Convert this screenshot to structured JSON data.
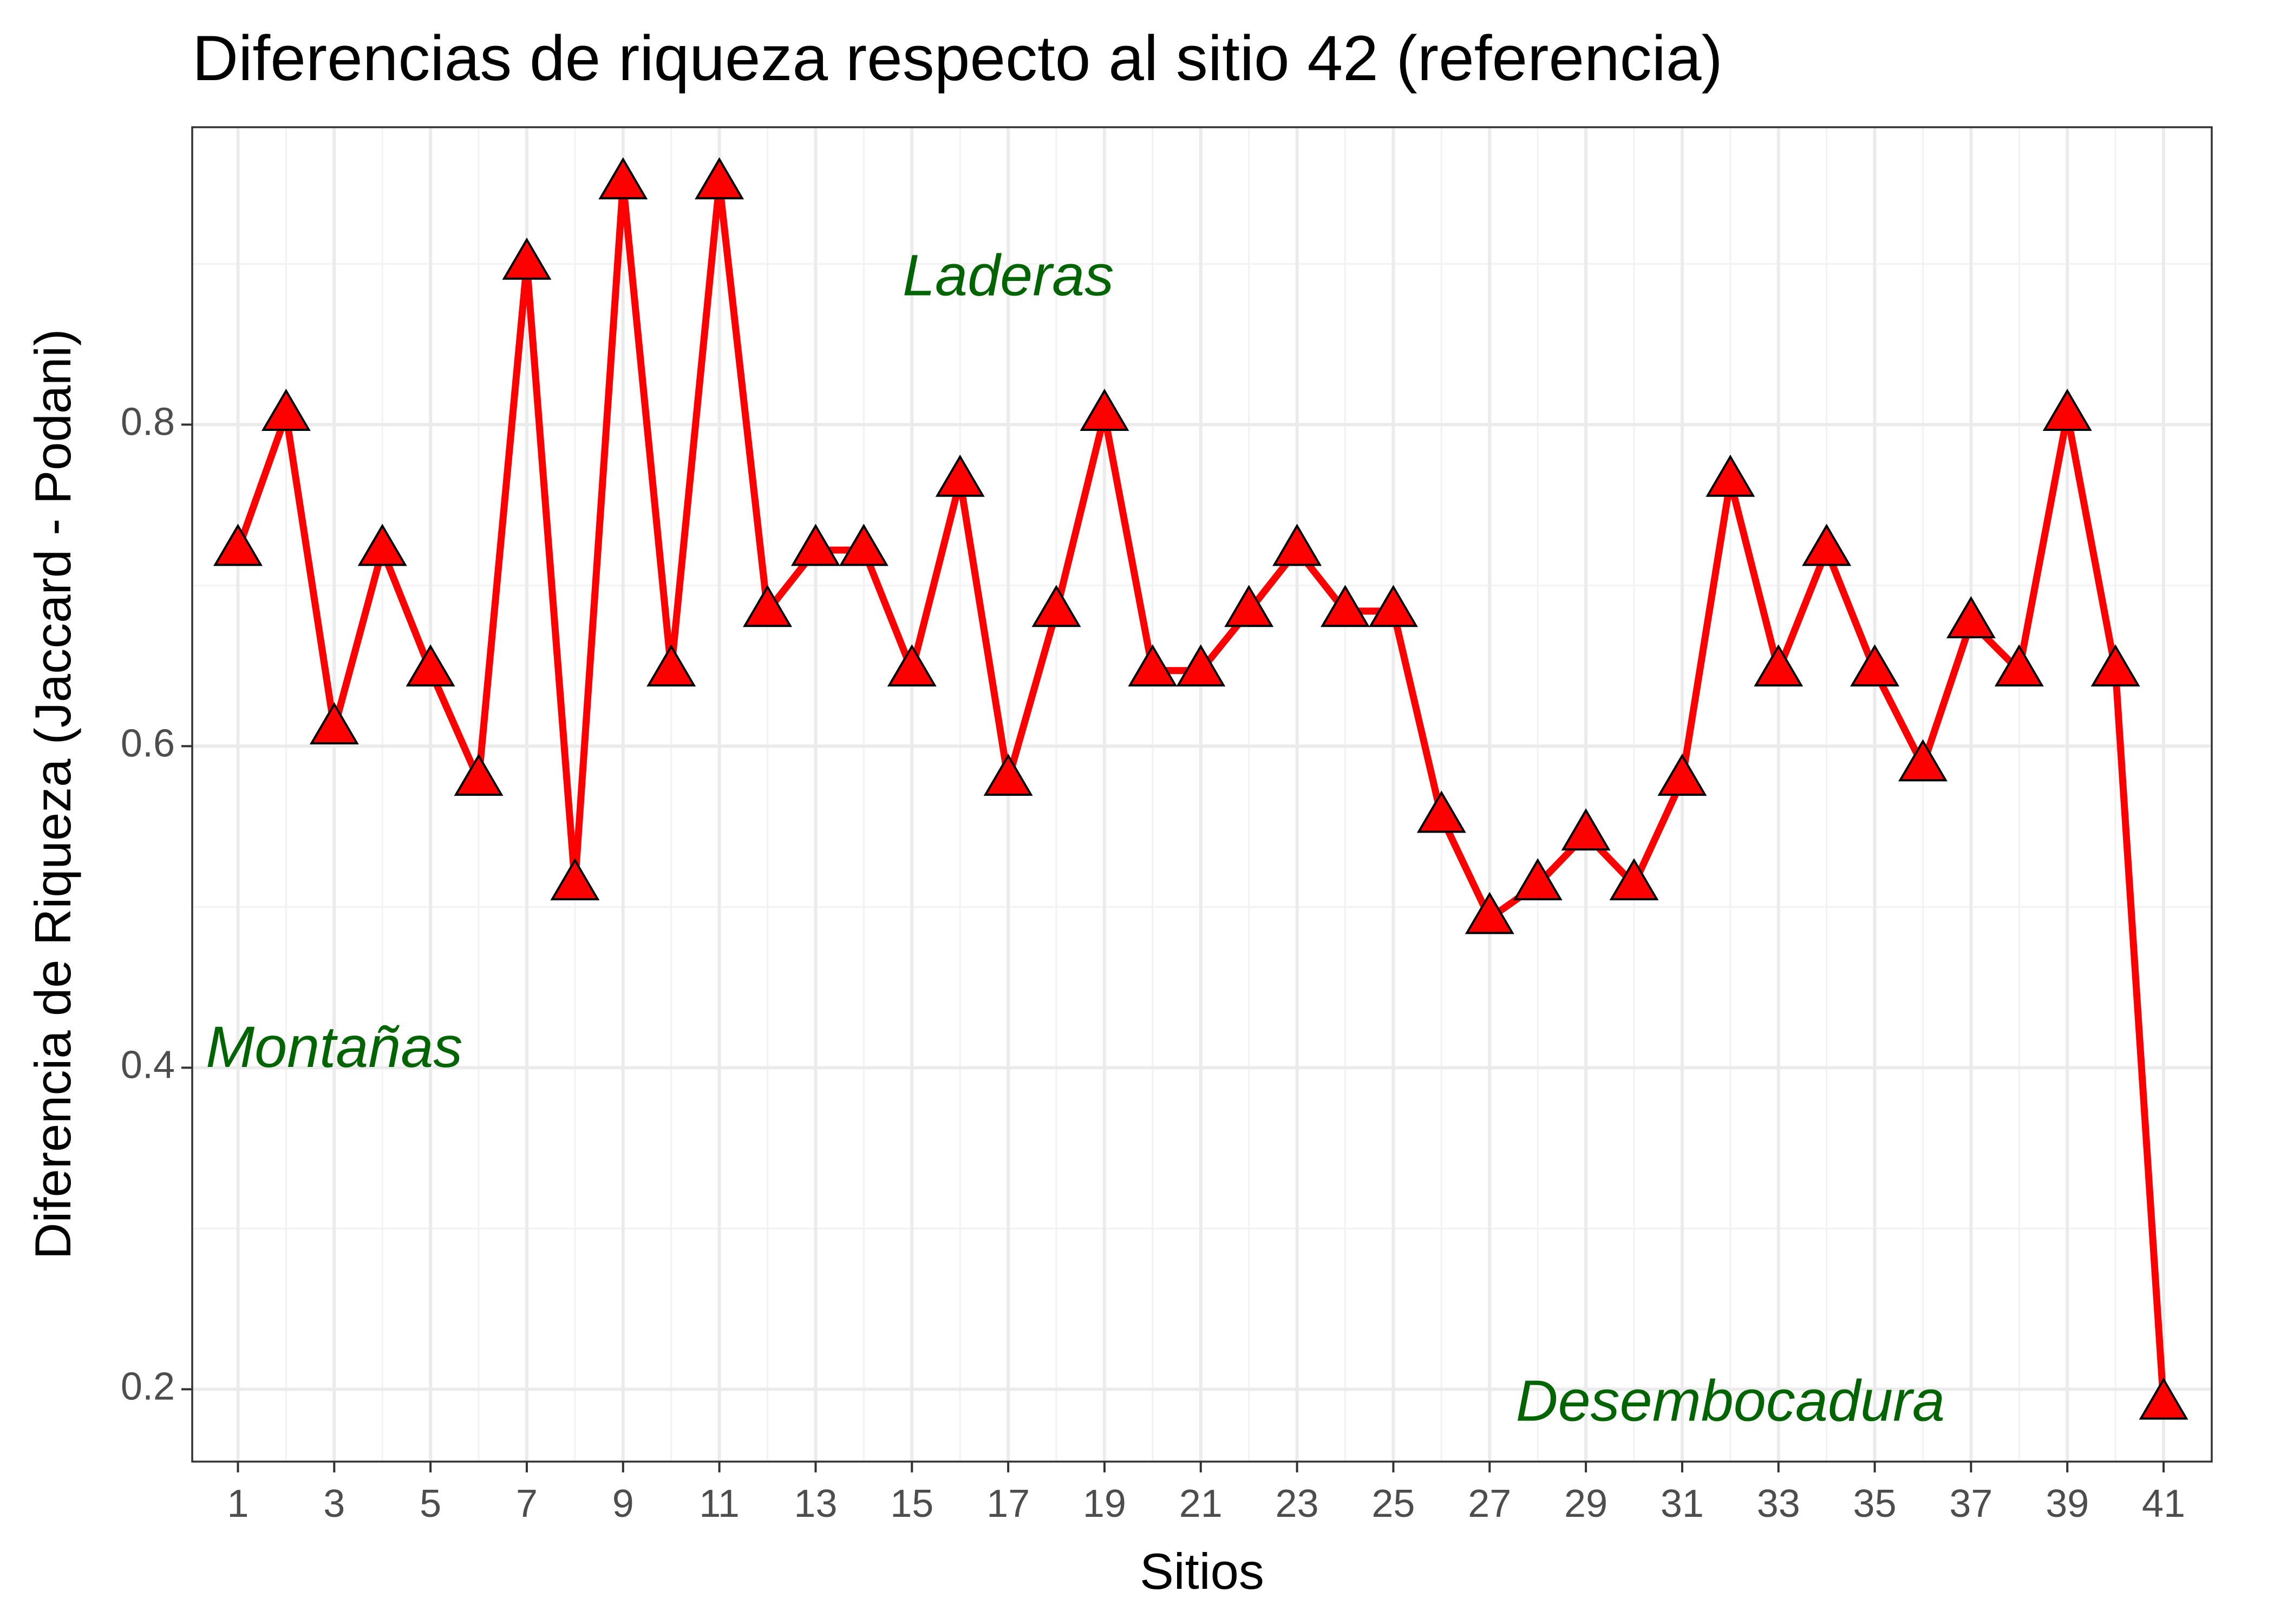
{
  "chart_data": {
    "type": "line",
    "title": "Diferencias de riqueza respecto al sitio 42 (referencia)",
    "xlabel": "Sitios",
    "ylabel": "Diferencia de Riqueza (Jaccard - Podani)",
    "x": [
      1,
      2,
      3,
      4,
      5,
      6,
      7,
      8,
      9,
      10,
      11,
      12,
      13,
      14,
      15,
      16,
      17,
      18,
      19,
      20,
      21,
      22,
      23,
      24,
      25,
      26,
      27,
      28,
      29,
      30,
      31,
      32,
      33,
      34,
      35,
      36,
      37,
      38,
      39,
      40,
      41
    ],
    "series": [
      {
        "values": [
          0.722,
          0.806,
          0.611,
          0.722,
          0.647,
          0.579,
          0.9,
          0.514,
          0.95,
          0.647,
          0.95,
          0.684,
          0.722,
          0.722,
          0.647,
          0.765,
          0.579,
          0.684,
          0.806,
          0.647,
          0.647,
          0.684,
          0.722,
          0.684,
          0.684,
          0.556,
          0.493,
          0.514,
          0.545,
          0.514,
          0.579,
          0.765,
          0.647,
          0.722,
          0.647,
          0.588,
          0.677,
          0.647,
          0.806,
          0.647,
          0.191
        ],
        "color": "#ff0000",
        "marker": "triangle",
        "marker_fill": "#ff0000",
        "marker_edge": "#000000"
      }
    ],
    "xticks": [
      "1",
      "3",
      "5",
      "7",
      "9",
      "11",
      "13",
      "15",
      "17",
      "19",
      "21",
      "23",
      "25",
      "27",
      "29",
      "31",
      "33",
      "35",
      "37",
      "39",
      "41"
    ],
    "yticks": [
      "0.2",
      "0.4",
      "0.6",
      "0.8"
    ],
    "xlim": [
      0.05,
      42.0
    ],
    "ylim": [
      0.155,
      0.985
    ],
    "grid": true,
    "annotations": [
      {
        "text": "Laderas",
        "x": 17.0,
        "y": 0.89,
        "color": "#006400"
      },
      {
        "text": "Montañas",
        "x": 3.0,
        "y": 0.41,
        "color": "#006400"
      },
      {
        "text": "Desembocadura",
        "x": 32.0,
        "y": 0.19,
        "color": "#006400"
      }
    ]
  }
}
